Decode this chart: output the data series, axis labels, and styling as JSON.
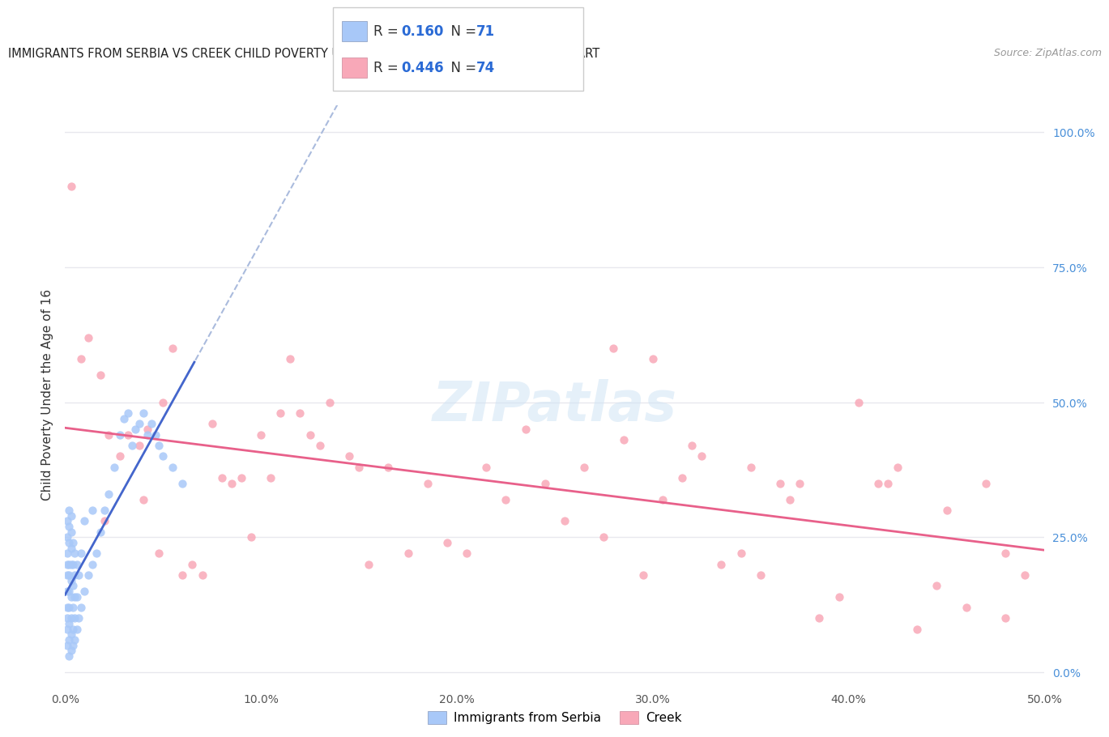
{
  "title": "IMMIGRANTS FROM SERBIA VS CREEK CHILD POVERTY UNDER THE AGE OF 16 CORRELATION CHART",
  "source": "Source: ZipAtlas.com",
  "ylabel": "Child Poverty Under the Age of 16",
  "xlim": [
    0.0,
    0.5
  ],
  "ylim": [
    -0.02,
    1.05
  ],
  "xtick_values": [
    0.0,
    0.1,
    0.2,
    0.3,
    0.4,
    0.5
  ],
  "xtick_labels": [
    "0.0%",
    "10.0%",
    "20.0%",
    "30.0%",
    "40.0%",
    "50.0%"
  ],
  "ytick_values_right": [
    0.0,
    0.25,
    0.5,
    0.75,
    1.0
  ],
  "ytick_labels_right": [
    "0.0%",
    "25.0%",
    "50.0%",
    "75.0%",
    "100.0%"
  ],
  "serbia_color": "#a8c8f8",
  "creek_color": "#f8a8b8",
  "serbia_line_color": "#4466cc",
  "creek_line_color": "#e8608a",
  "dashed_line_color": "#aabbdd",
  "serbia_R": 0.16,
  "serbia_N": 71,
  "creek_R": 0.446,
  "creek_N": 74,
  "legend_label_serbia": "Immigrants from Serbia",
  "legend_label_creek": "Creek",
  "watermark": "ZIPatlas",
  "serbia_scatter_x": [
    0.001,
    0.001,
    0.001,
    0.001,
    0.001,
    0.001,
    0.001,
    0.001,
    0.001,
    0.001,
    0.002,
    0.002,
    0.002,
    0.002,
    0.002,
    0.002,
    0.002,
    0.002,
    0.002,
    0.002,
    0.003,
    0.003,
    0.003,
    0.003,
    0.003,
    0.003,
    0.003,
    0.003,
    0.003,
    0.004,
    0.004,
    0.004,
    0.004,
    0.004,
    0.004,
    0.005,
    0.005,
    0.005,
    0.005,
    0.005,
    0.006,
    0.006,
    0.006,
    0.007,
    0.007,
    0.008,
    0.008,
    0.01,
    0.01,
    0.012,
    0.014,
    0.014,
    0.016,
    0.018,
    0.02,
    0.022,
    0.025,
    0.028,
    0.03,
    0.032,
    0.034,
    0.036,
    0.038,
    0.04,
    0.042,
    0.044,
    0.046,
    0.048,
    0.05,
    0.055,
    0.06
  ],
  "serbia_scatter_y": [
    0.05,
    0.08,
    0.1,
    0.12,
    0.15,
    0.18,
    0.2,
    0.22,
    0.25,
    0.28,
    0.03,
    0.06,
    0.09,
    0.12,
    0.15,
    0.18,
    0.2,
    0.24,
    0.27,
    0.3,
    0.04,
    0.07,
    0.1,
    0.14,
    0.17,
    0.2,
    0.23,
    0.26,
    0.29,
    0.05,
    0.08,
    0.12,
    0.16,
    0.2,
    0.24,
    0.06,
    0.1,
    0.14,
    0.18,
    0.22,
    0.08,
    0.14,
    0.2,
    0.1,
    0.18,
    0.12,
    0.22,
    0.15,
    0.28,
    0.18,
    0.2,
    0.3,
    0.22,
    0.26,
    0.3,
    0.33,
    0.38,
    0.44,
    0.47,
    0.48,
    0.42,
    0.45,
    0.46,
    0.48,
    0.44,
    0.46,
    0.44,
    0.42,
    0.4,
    0.38,
    0.35
  ],
  "creek_scatter_x": [
    0.003,
    0.008,
    0.012,
    0.018,
    0.022,
    0.028,
    0.032,
    0.038,
    0.042,
    0.048,
    0.055,
    0.065,
    0.075,
    0.085,
    0.095,
    0.105,
    0.115,
    0.125,
    0.135,
    0.145,
    0.155,
    0.165,
    0.175,
    0.185,
    0.195,
    0.205,
    0.215,
    0.225,
    0.235,
    0.245,
    0.255,
    0.265,
    0.275,
    0.285,
    0.295,
    0.305,
    0.315,
    0.325,
    0.335,
    0.345,
    0.355,
    0.365,
    0.375,
    0.385,
    0.395,
    0.405,
    0.415,
    0.425,
    0.435,
    0.445,
    0.46,
    0.47,
    0.48,
    0.49,
    0.05,
    0.07,
    0.09,
    0.11,
    0.13,
    0.15,
    0.02,
    0.04,
    0.06,
    0.08,
    0.1,
    0.12,
    0.28,
    0.3,
    0.32,
    0.35,
    0.37,
    0.42,
    0.45,
    0.48
  ],
  "creek_scatter_y": [
    0.9,
    0.58,
    0.62,
    0.55,
    0.44,
    0.4,
    0.44,
    0.42,
    0.45,
    0.22,
    0.6,
    0.2,
    0.46,
    0.35,
    0.25,
    0.36,
    0.58,
    0.44,
    0.5,
    0.4,
    0.2,
    0.38,
    0.22,
    0.35,
    0.24,
    0.22,
    0.38,
    0.32,
    0.45,
    0.35,
    0.28,
    0.38,
    0.25,
    0.43,
    0.18,
    0.32,
    0.36,
    0.4,
    0.2,
    0.22,
    0.18,
    0.35,
    0.35,
    0.1,
    0.14,
    0.5,
    0.35,
    0.38,
    0.08,
    0.16,
    0.12,
    0.35,
    0.22,
    0.18,
    0.5,
    0.18,
    0.36,
    0.48,
    0.42,
    0.38,
    0.28,
    0.32,
    0.18,
    0.36,
    0.44,
    0.48,
    0.6,
    0.58,
    0.42,
    0.38,
    0.32,
    0.35,
    0.3,
    0.1
  ],
  "background_color": "#ffffff",
  "grid_color": "#e8e8ee"
}
